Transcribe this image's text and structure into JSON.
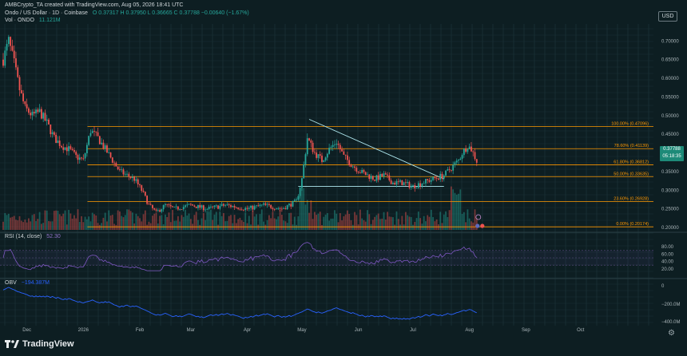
{
  "header": {
    "credit": "AMBCrypto_TA created with TradingView.com, Aug 05, 2026 18:41 UTC",
    "symbol": "Ondo / US Dollar · 1D · Coinbase",
    "ohlc": "O 0.37317  H 0.37950  L 0.36665  C 0.37788  −0.00640 (−1.67%)",
    "volume_label": "Vol · ONDO",
    "volume_value": "11.121M",
    "rsi_label": "RSI (14, close)",
    "rsi_value": "52.30",
    "obv_label": "OBV",
    "obv_value": "−194.387M"
  },
  "currency_button": "USD",
  "price_tag": {
    "price": "0.37788",
    "countdown": "05:18:35"
  },
  "brand": "TradingView",
  "colors": {
    "background": "#0d1e22",
    "up": "#26a69a",
    "down": "#ef5350",
    "fib": "#ff9800",
    "triangle": "#b2ebf2",
    "rsi": "#7e57c2",
    "obv": "#2962ff"
  },
  "icons": {
    "settings": "gear-icon",
    "logo": "tradingview-logo-icon"
  },
  "chart_data": {
    "type": "candlestick",
    "pair": "ONDO/USD",
    "timeframe": "1D",
    "y_axis_ticks": [
      "0.70000",
      "0.65000",
      "0.60000",
      "0.55000",
      "0.50000",
      "0.45000",
      "0.40000",
      "0.35000",
      "0.30000",
      "0.25000",
      "0.20000"
    ],
    "x_axis_ticks": [
      "Dec",
      "2026",
      "Feb",
      "Mar",
      "Apr",
      "May",
      "Jun",
      "Jul",
      "Aug",
      "Sep",
      "Oct"
    ],
    "ylim": [
      0.2,
      0.72
    ],
    "fib_levels": [
      {
        "label": "100.00% (0.47096)",
        "price": 0.47096
      },
      {
        "label": "78.60% (0.41139)",
        "price": 0.41139
      },
      {
        "label": "61.80% (0.36812)",
        "price": 0.36812
      },
      {
        "label": "50.00% (0.33635)",
        "price": 0.33635
      },
      {
        "label": "23.60% (0.26928)",
        "price": 0.26928
      },
      {
        "label": "0.00% (0.20174)",
        "price": 0.20174
      }
    ],
    "trendlines": [
      {
        "name": "triangle-upper",
        "from": [
          "May 05",
          0.49
        ],
        "to": [
          "Jul 18",
          0.33
        ]
      },
      {
        "name": "triangle-lower",
        "from": [
          "Apr 29",
          0.31
        ],
        "to": [
          "Jul 18",
          0.31
        ]
      }
    ],
    "price_path": [
      [
        "Nov 18",
        0.65
      ],
      [
        "Nov 21",
        0.7
      ],
      [
        "Nov 24",
        0.64
      ],
      [
        "Nov 27",
        0.57
      ],
      [
        "Nov 30",
        0.52
      ],
      [
        "Dec 04",
        0.5
      ],
      [
        "Dec 08",
        0.51
      ],
      [
        "Dec 12",
        0.48
      ],
      [
        "Dec 16",
        0.44
      ],
      [
        "Dec 20",
        0.42
      ],
      [
        "Dec 24",
        0.41
      ],
      [
        "Dec 28",
        0.39
      ],
      [
        "Jan 01",
        0.38
      ],
      [
        "Jan 05",
        0.46
      ],
      [
        "Jan 09",
        0.44
      ],
      [
        "Jan 13",
        0.41
      ],
      [
        "Jan 17",
        0.38
      ],
      [
        "Jan 21",
        0.35
      ],
      [
        "Jan 25",
        0.34
      ],
      [
        "Jan 29",
        0.33
      ],
      [
        "Feb 02",
        0.3
      ],
      [
        "Feb 06",
        0.26
      ],
      [
        "Feb 10",
        0.24
      ],
      [
        "Feb 15",
        0.26
      ],
      [
        "Feb 20",
        0.25
      ],
      [
        "Mar 01",
        0.26
      ],
      [
        "Mar 10",
        0.25
      ],
      [
        "Mar 20",
        0.26
      ],
      [
        "Apr 01",
        0.25
      ],
      [
        "Apr 10",
        0.26
      ],
      [
        "Apr 20",
        0.25
      ],
      [
        "Apr 28",
        0.27
      ],
      [
        "May 01",
        0.33
      ],
      [
        "May 04",
        0.44
      ],
      [
        "May 08",
        0.4
      ],
      [
        "May 12",
        0.38
      ],
      [
        "May 16",
        0.41
      ],
      [
        "May 20",
        0.43
      ],
      [
        "May 24",
        0.39
      ],
      [
        "May 28",
        0.37
      ],
      [
        "Jun 02",
        0.35
      ],
      [
        "Jun 06",
        0.34
      ],
      [
        "Jun 10",
        0.33
      ],
      [
        "Jun 15",
        0.34
      ],
      [
        "Jun 20",
        0.32
      ],
      [
        "Jun 25",
        0.32
      ],
      [
        "Jul 01",
        0.31
      ],
      [
        "Jul 06",
        0.32
      ],
      [
        "Jul 12",
        0.33
      ],
      [
        "Jul 18",
        0.34
      ],
      [
        "Jul 22",
        0.36
      ],
      [
        "Jul 26",
        0.38
      ],
      [
        "Jul 28",
        0.4
      ],
      [
        "Jul 31",
        0.42
      ],
      [
        "Aug 02",
        0.41
      ],
      [
        "Aug 05",
        0.378
      ]
    ],
    "rsi_ticks": [
      "80.00",
      "60.00",
      "40.00",
      "20.00"
    ],
    "obv_ticks": [
      "0",
      "−200.0M",
      "−400.0M"
    ]
  }
}
